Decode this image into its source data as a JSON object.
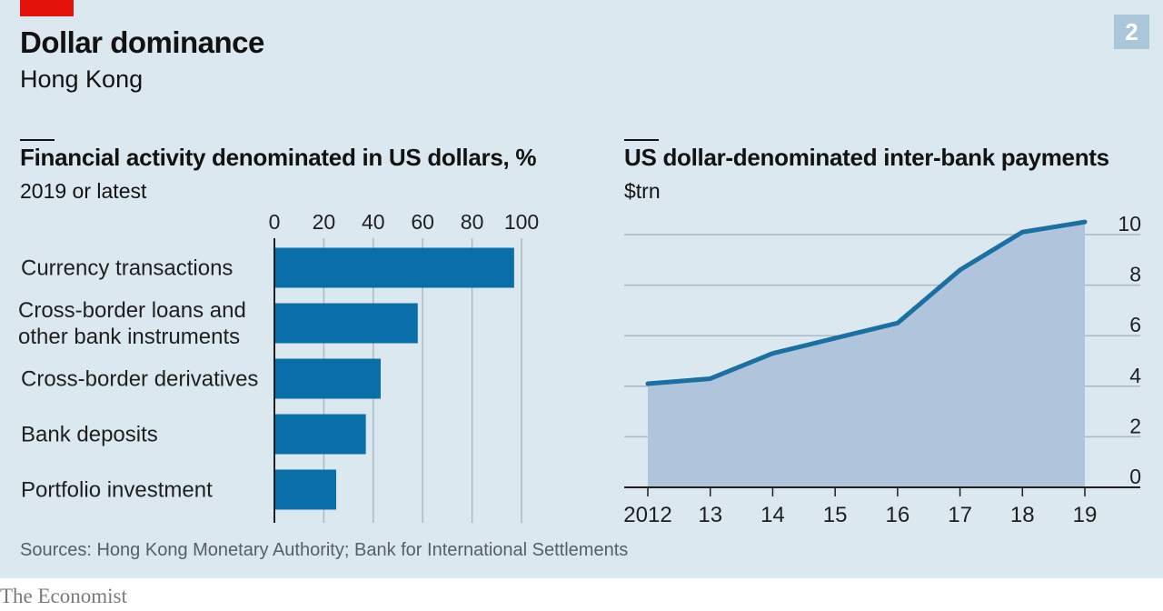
{
  "header": {
    "title": "Dollar dominance",
    "subtitle": "Hong Kong",
    "badge": "2"
  },
  "colors": {
    "background": "#dbe8f0",
    "bar": "#0a6ea8",
    "line": "#1a6fa3",
    "area": "#b0c4dc",
    "grid": "#aab8c2",
    "brand_red": "#e3120b"
  },
  "chart_data": [
    {
      "type": "bar",
      "orientation": "horizontal",
      "title": "Financial activity denominated in US dollars, %",
      "subtitle": "2019 or latest",
      "categories": [
        [
          "Currency transactions"
        ],
        [
          "Cross-border loans and",
          "other bank instruments"
        ],
        [
          "Cross-border derivatives"
        ],
        [
          "Bank deposits"
        ],
        [
          "Portfolio investment"
        ]
      ],
      "values": [
        97,
        58,
        43,
        37,
        25
      ],
      "xlim": [
        0,
        100
      ],
      "xticks": [
        0,
        20,
        40,
        60,
        80,
        100
      ],
      "grid": true,
      "tick_position": "top"
    },
    {
      "type": "area",
      "title": "US dollar-denominated inter-bank payments",
      "ylabel": "$trn",
      "x": [
        2012,
        2013,
        2014,
        2015,
        2016,
        2017,
        2018,
        2019
      ],
      "x_tick_labels": [
        "2012",
        "13",
        "14",
        "15",
        "16",
        "17",
        "18",
        "19"
      ],
      "values": [
        4.1,
        4.3,
        5.3,
        5.9,
        6.5,
        8.6,
        10.1,
        10.5
      ],
      "ylim": [
        0,
        10
      ],
      "yticks": [
        0,
        2,
        4,
        6,
        8,
        10
      ],
      "grid": true,
      "y_axis_position": "right"
    }
  ],
  "footer": {
    "source": "Sources: Hong Kong Monetary Authority; Bank for International Settlements",
    "brand": "The Economist"
  }
}
